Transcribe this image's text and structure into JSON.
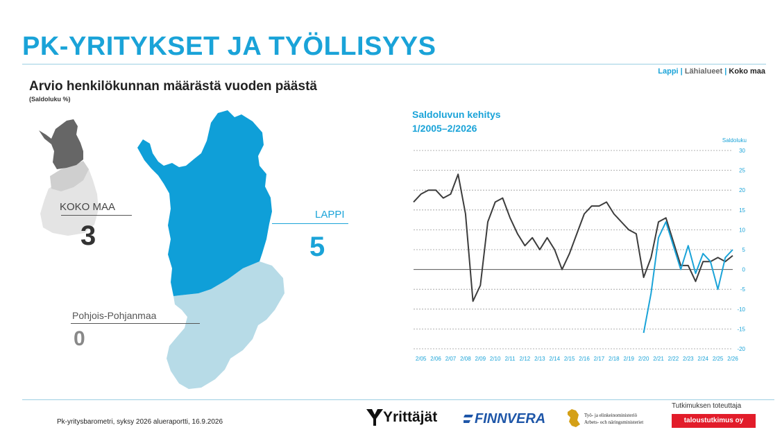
{
  "page": {
    "title": "PK-YRITYKSET JA TYÖLLISYYS",
    "nav": {
      "item1": "Lappi",
      "sep1": "|",
      "item2": "Lähialueet",
      "sep2": "|",
      "item3": "Koko maa"
    },
    "subtitle": "Arvio henkilökunnan määrästä vuoden päästä",
    "unit": "(Saldoluku %)",
    "footer": "Pk-yritysbarometri, syksy 2026 alueraportti, 16.9.2026"
  },
  "map": {
    "koko_maa": {
      "label": "KOKO MAA",
      "value": "3"
    },
    "lappi": {
      "label": "LAPPI",
      "value": "5"
    },
    "pohjois_pohjanmaa": {
      "label": "Pohjois-Pohjanmaa",
      "value": "0"
    },
    "colors": {
      "lappi": "#0f9fd8",
      "pohjois_pohjanmaa": "#b7dbe7",
      "finland_highlight": "#666666",
      "finland_neighbor": "#c8c8c8",
      "finland_rest": "#e4e4e4"
    }
  },
  "logos": {
    "yrittajat": "Yrittäjät",
    "finnvera": "FINNVERA",
    "tem_line1": "Työ- ja elinkeinoministeriö",
    "tem_line2": "Arbets- och näringsministeriet",
    "tt_caption": "Tutkimuksen toteuttaja",
    "tt_name": "taloustutkimus oy"
  },
  "chart_data": {
    "type": "line",
    "title": "Saldoluvun kehitys",
    "subtitle": "1/2005–2/2026",
    "ylabel": "Saldoluku",
    "ylim": [
      -20,
      30
    ],
    "yticks": [
      30,
      25,
      20,
      15,
      10,
      5,
      0,
      -5,
      -10,
      -15,
      -20
    ],
    "grid": true,
    "xticks": [
      "2/05",
      "2/06",
      "2/07",
      "2/08",
      "2/09",
      "2/10",
      "2/11",
      "2/12",
      "2/13",
      "2/14",
      "2/15",
      "2/16",
      "2/17",
      "2/18",
      "2/19",
      "2/20",
      "2/21",
      "2/22",
      "2/23",
      "2/24",
      "2/25",
      "2/26"
    ],
    "x": [
      "1/05",
      "2/05",
      "1/06",
      "2/06",
      "1/07",
      "2/07",
      "1/08",
      "2/08",
      "1/09",
      "2/09",
      "1/10",
      "2/10",
      "1/11",
      "2/11",
      "1/12",
      "2/12",
      "1/13",
      "2/13",
      "1/14",
      "2/14",
      "1/15",
      "2/15",
      "1/16",
      "2/16",
      "1/17",
      "2/17",
      "1/18",
      "2/18",
      "1/19",
      "2/19",
      "1/20",
      "2/20",
      "1/21",
      "2/21",
      "1/22",
      "2/22",
      "1/23",
      "2/23",
      "1/24",
      "2/24",
      "1/25",
      "2/25",
      "1/26",
      "2/26"
    ],
    "series": [
      {
        "color": "#3c3c3c",
        "values": [
          17,
          19,
          20,
          20,
          18,
          19,
          24,
          14,
          -8,
          -4,
          12,
          17,
          18,
          13,
          9,
          6,
          8,
          5,
          8,
          5,
          0,
          4,
          9,
          14,
          16,
          16,
          17,
          14,
          12,
          10,
          9,
          -2,
          3,
          12,
          13,
          7,
          1,
          1,
          -3,
          2,
          2,
          3,
          2,
          3.5
        ]
      },
      {
        "color": "#1aa3d8",
        "values": [
          null,
          null,
          null,
          null,
          null,
          null,
          null,
          null,
          null,
          null,
          null,
          null,
          null,
          null,
          null,
          null,
          null,
          null,
          null,
          null,
          null,
          null,
          null,
          null,
          null,
          null,
          null,
          null,
          null,
          null,
          null,
          -16,
          -6,
          8,
          12,
          6,
          0,
          6,
          -1,
          4,
          2,
          -5,
          3,
          5
        ]
      }
    ]
  }
}
